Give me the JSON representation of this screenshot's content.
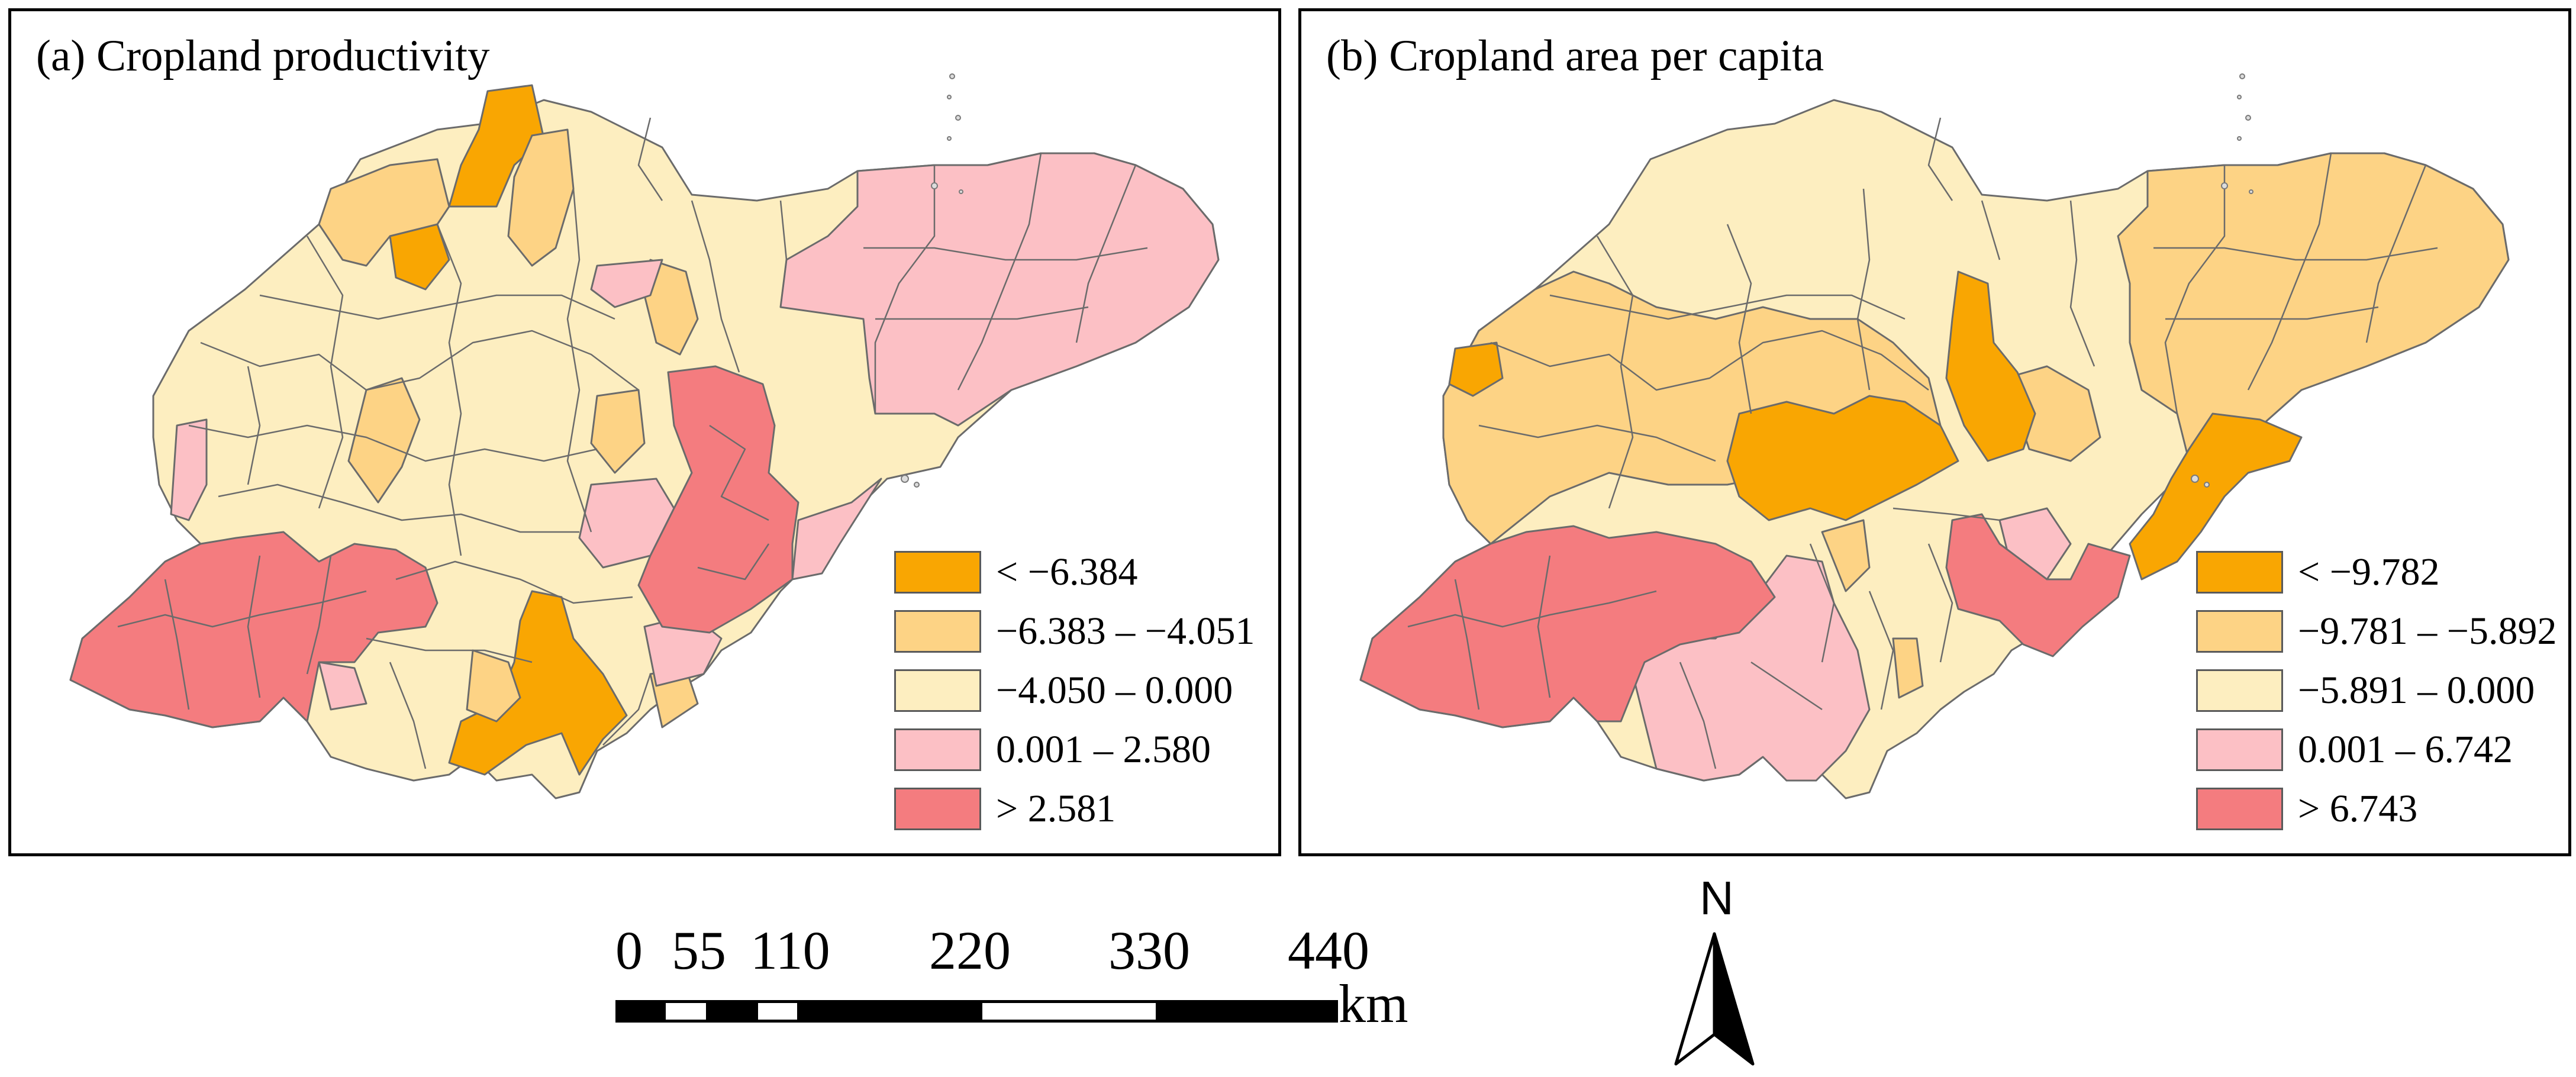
{
  "panels": [
    {
      "title": "(a) Cropland productivity",
      "legend": [
        {
          "label": "< −6.384",
          "color": "#f9a602"
        },
        {
          "label": "−6.383 – −4.051",
          "color": "#fdd385"
        },
        {
          "label": "−4.050 – 0.000",
          "color": "#fdeec0"
        },
        {
          "label": "0.001 – 2.580",
          "color": "#fcc0c5"
        },
        {
          "label": "> 2.581",
          "color": "#f47c7f"
        }
      ]
    },
    {
      "title": "(b) Cropland area per capita",
      "legend": [
        {
          "label": "< −9.782",
          "color": "#f9a602"
        },
        {
          "label": "−9.781 – −5.892",
          "color": "#fdd385"
        },
        {
          "label": "−5.891 – 0.000",
          "color": "#fdeec0"
        },
        {
          "label": "0.001 – 6.742",
          "color": "#fcc0c5"
        },
        {
          "label": "> 6.743",
          "color": "#f47c7f"
        }
      ]
    }
  ],
  "scale_bar": {
    "ticks": [
      "0",
      "55",
      "110",
      "220",
      "330",
      "440"
    ],
    "unit": "km"
  },
  "north_arrow": {
    "label": "N"
  },
  "colors": {
    "border": "#6b6b6b",
    "water_outline": "#7a7a7a"
  }
}
